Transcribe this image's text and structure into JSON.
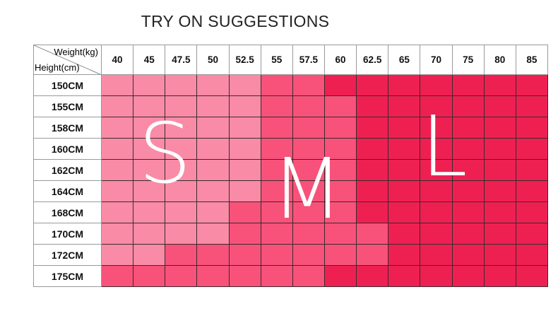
{
  "title": "TRY ON SUGGESTIONS",
  "corner": {
    "weight_label": "Weight(kg)",
    "height_label": "Height(cm)"
  },
  "weights": [
    "40",
    "45",
    "47.5",
    "50",
    "52.5",
    "55",
    "57.5",
    "60",
    "62.5",
    "65",
    "70",
    "75",
    "80",
    "85"
  ],
  "heights": [
    "150CM",
    "155CM",
    "158CM",
    "160CM",
    "162CM",
    "164CM",
    "168CM",
    "170CM",
    "172CM",
    "175CM"
  ],
  "sizes": [
    [
      "S",
      "S",
      "S",
      "S",
      "S",
      "M",
      "M",
      "L",
      "L",
      "L",
      "L",
      "L",
      "L",
      "L"
    ],
    [
      "S",
      "S",
      "S",
      "S",
      "S",
      "M",
      "M",
      "M",
      "L",
      "L",
      "L",
      "L",
      "L",
      "L"
    ],
    [
      "S",
      "S",
      "S",
      "S",
      "S",
      "M",
      "M",
      "M",
      "L",
      "L",
      "L",
      "L",
      "L",
      "L"
    ],
    [
      "S",
      "S",
      "S",
      "S",
      "S",
      "M",
      "M",
      "M",
      "L",
      "L",
      "L",
      "L",
      "L",
      "L"
    ],
    [
      "S",
      "S",
      "S",
      "S",
      "S",
      "M",
      "M",
      "M",
      "L",
      "L",
      "L",
      "L",
      "L",
      "L"
    ],
    [
      "S",
      "S",
      "S",
      "S",
      "S",
      "M",
      "M",
      "M",
      "L",
      "L",
      "L",
      "L",
      "L",
      "L"
    ],
    [
      "S",
      "S",
      "S",
      "S",
      "M",
      "M",
      "M",
      "M",
      "L",
      "L",
      "L",
      "L",
      "L",
      "L"
    ],
    [
      "S",
      "S",
      "S",
      "S",
      "M",
      "M",
      "M",
      "M",
      "M",
      "L",
      "L",
      "L",
      "L",
      "L"
    ],
    [
      "S",
      "S",
      "M",
      "M",
      "M",
      "M",
      "M",
      "M",
      "M",
      "L",
      "L",
      "L",
      "L",
      "L"
    ],
    [
      "M",
      "M",
      "M",
      "M",
      "M",
      "M",
      "M",
      "L",
      "L",
      "L",
      "L",
      "L",
      "L",
      "L"
    ]
  ],
  "size_labels": {
    "S": "S",
    "M": "M",
    "L": "L"
  },
  "colors": {
    "S": "#f98ba7",
    "M": "#f8527a",
    "L": "#ee2052"
  }
}
